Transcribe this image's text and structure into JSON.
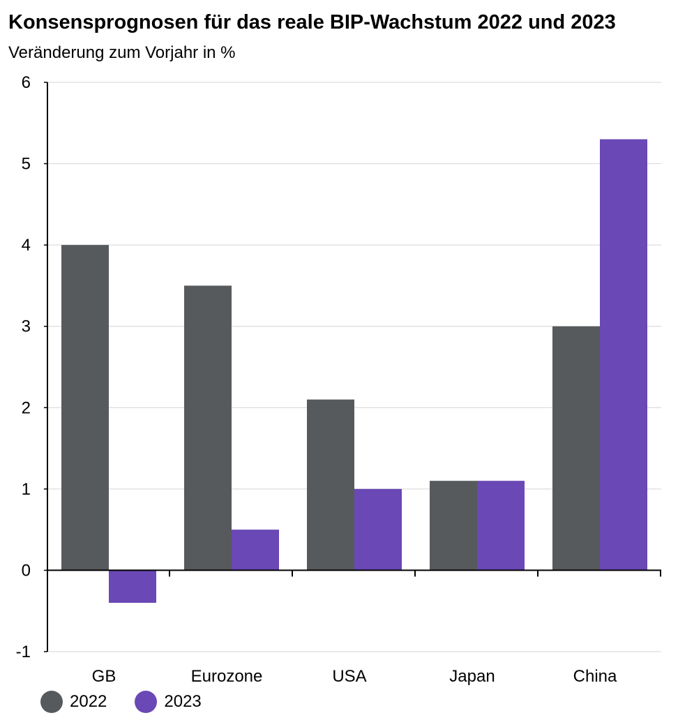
{
  "chart_data": {
    "type": "bar",
    "title": "Konsensprognosen für das reale BIP-Wachstum 2022 und 2023",
    "subtitle": "Veränderung zum Vorjahr in %",
    "categories": [
      "GB",
      "Eurozone",
      "USA",
      "Japan",
      "China"
    ],
    "series": [
      {
        "name": "2022",
        "color": "#575a5d",
        "values": [
          4.0,
          3.5,
          2.1,
          1.1,
          3.0
        ]
      },
      {
        "name": "2023",
        "color": "#6a48b5",
        "values": [
          -0.4,
          0.5,
          1.0,
          1.1,
          5.3
        ]
      }
    ],
    "ylim": [
      -1,
      6
    ],
    "yticks": [
      "-1",
      "0",
      "1",
      "2",
      "3",
      "4",
      "5",
      "6"
    ],
    "grid": true,
    "legend": "bottom-left"
  }
}
